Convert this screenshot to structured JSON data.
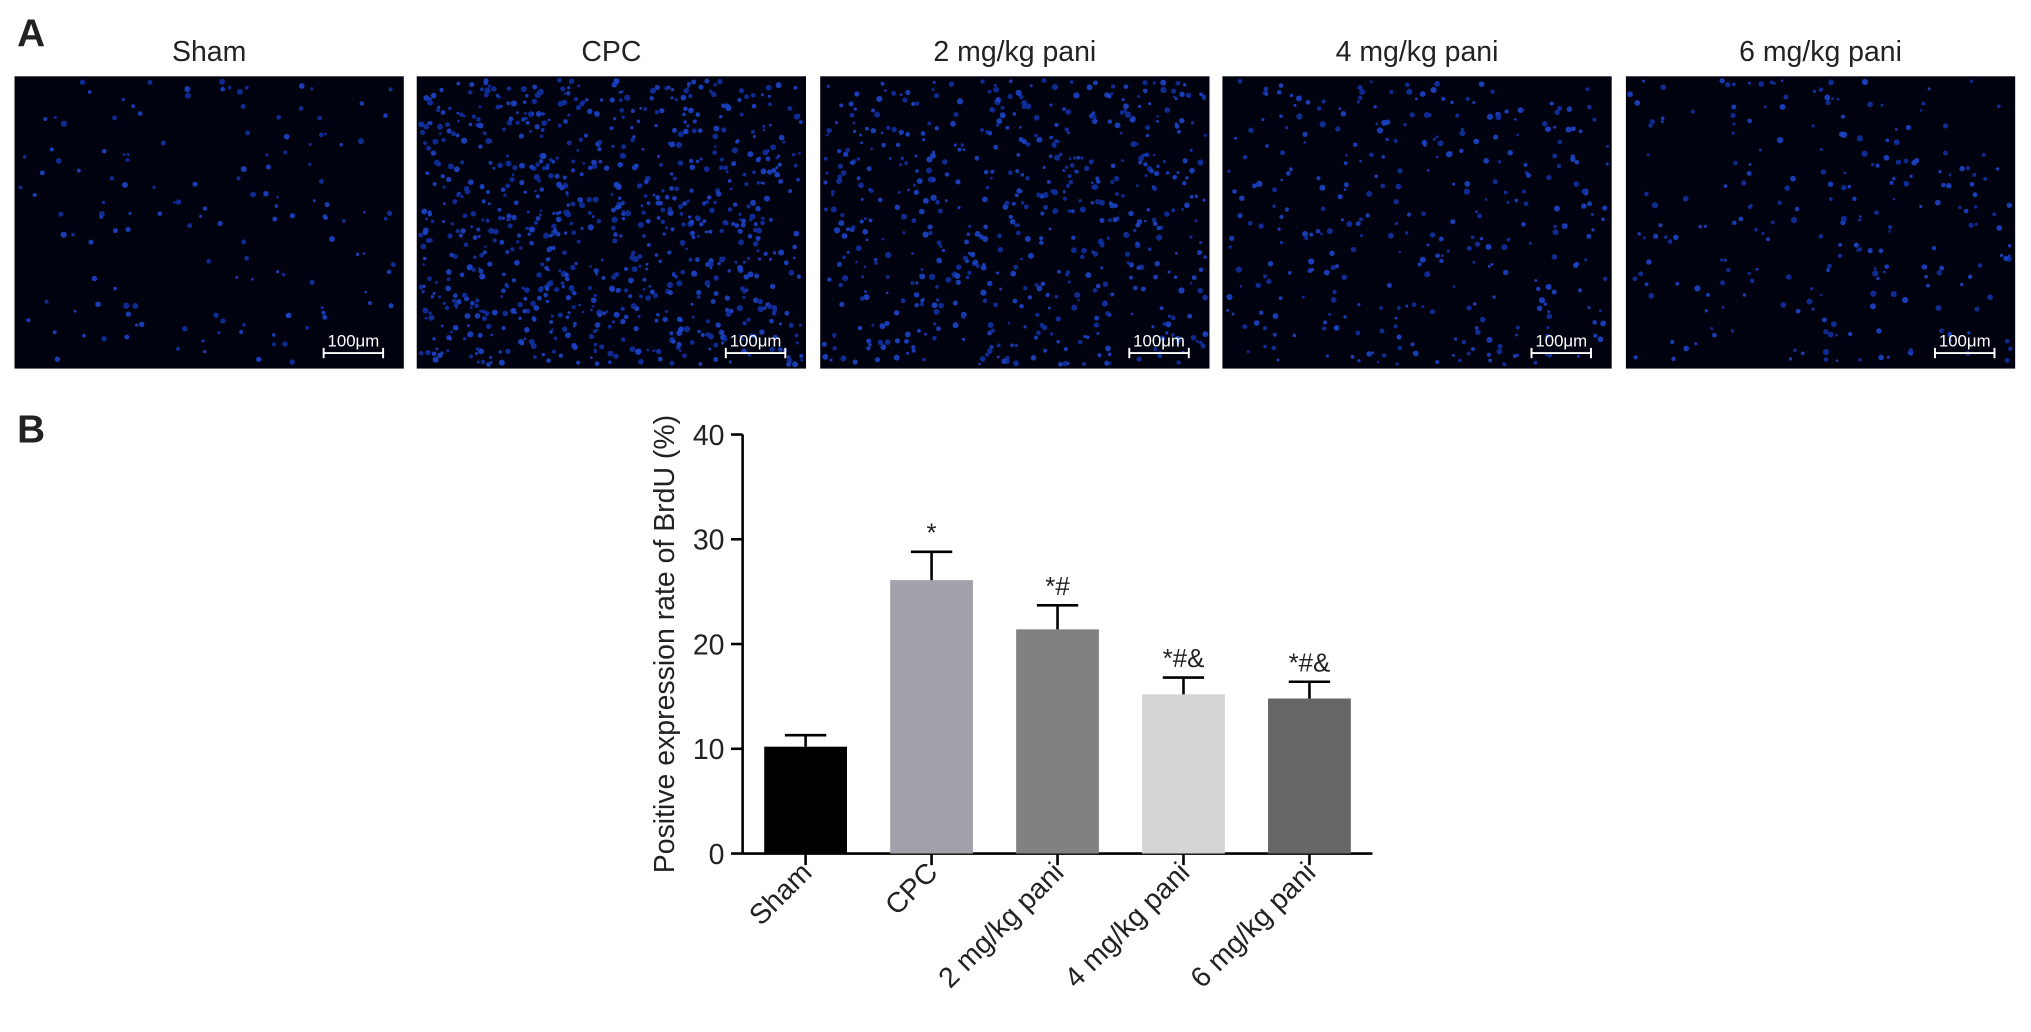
{
  "panel_a": {
    "label": "A",
    "images": [
      {
        "title": "Sham",
        "scale_bar": "100μm"
      },
      {
        "title": "CPC",
        "scale_bar": "100μm"
      },
      {
        "title": "2 mg/kg pani",
        "scale_bar": "100μm"
      },
      {
        "title": "4 mg/kg pani",
        "scale_bar": "100μm"
      },
      {
        "title": "6 mg/kg pani",
        "scale_bar": "100μm"
      }
    ]
  },
  "chart_data": {
    "type": "bar",
    "panel_label": "B",
    "ylabel": "Positive expression rate of BrdU (%)",
    "categories": [
      "Sham",
      "CPC",
      "2 mg/kg pani",
      "4 mg/kg pani",
      "6 mg/kg pani"
    ],
    "values": [
      10.2,
      26.1,
      21.4,
      15.2,
      14.8
    ],
    "errors": [
      1.1,
      2.7,
      2.3,
      1.6,
      1.6
    ],
    "colors": [
      "#000000",
      "#a1a1a9",
      "#818181",
      "#d4d4d4",
      "#666666"
    ],
    "annotations": [
      null,
      "*",
      "*#",
      "*#&",
      "*#&"
    ],
    "ylim": [
      0,
      40
    ],
    "yticks": [
      0,
      10,
      20,
      30,
      40
    ]
  }
}
